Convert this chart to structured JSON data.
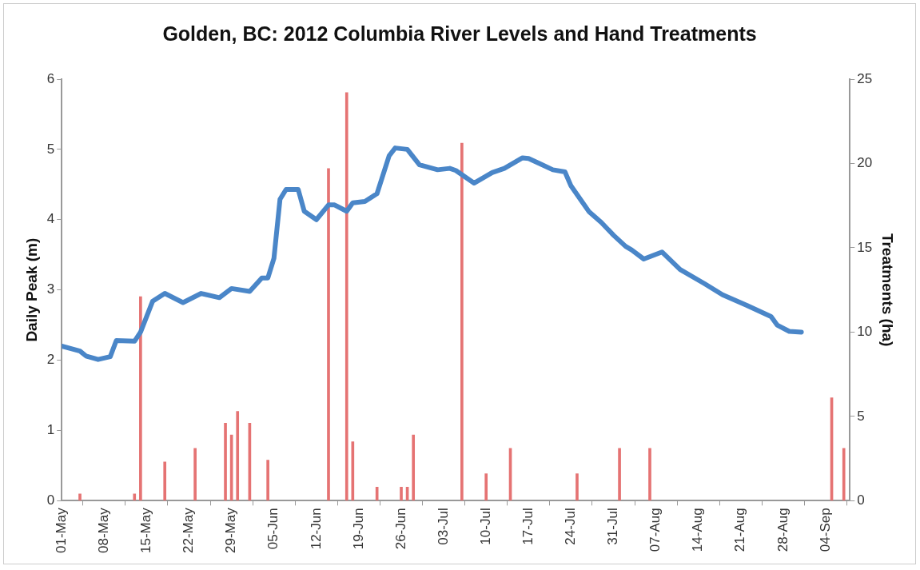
{
  "chart_data": {
    "type": "line",
    "title": "Golden, BC: 2012 Columbia River Levels and Hand Treatments",
    "ylabel": "Daily Peak (m)",
    "y2label": "Treatments (ha)",
    "xlim": [
      "2012-05-01",
      "2012-09-08"
    ],
    "xticks": [
      {
        "value": "2012-05-01",
        "label": "01-May"
      },
      {
        "value": "2012-05-08",
        "label": "08-May"
      },
      {
        "value": "2012-05-15",
        "label": "15-May"
      },
      {
        "value": "2012-05-22",
        "label": "22-May"
      },
      {
        "value": "2012-05-29",
        "label": "29-May"
      },
      {
        "value": "2012-06-05",
        "label": "05-Jun"
      },
      {
        "value": "2012-06-12",
        "label": "12-Jun"
      },
      {
        "value": "2012-06-19",
        "label": "19-Jun"
      },
      {
        "value": "2012-06-26",
        "label": "26-Jun"
      },
      {
        "value": "2012-07-03",
        "label": "03-Jul"
      },
      {
        "value": "2012-07-10",
        "label": "10-Jul"
      },
      {
        "value": "2012-07-17",
        "label": "17-Jul"
      },
      {
        "value": "2012-07-24",
        "label": "24-Jul"
      },
      {
        "value": "2012-07-31",
        "label": "31-Jul"
      },
      {
        "value": "2012-08-07",
        "label": "07-Aug"
      },
      {
        "value": "2012-08-14",
        "label": "14-Aug"
      },
      {
        "value": "2012-08-21",
        "label": "21-Aug"
      },
      {
        "value": "2012-08-28",
        "label": "28-Aug"
      },
      {
        "value": "2012-09-04",
        "label": "04-Sep"
      }
    ],
    "ylim": [
      0,
      6
    ],
    "yticks": [
      0,
      1,
      2,
      3,
      4,
      5,
      6
    ],
    "y2lim": [
      0,
      25
    ],
    "y2ticks": [
      0,
      5,
      10,
      15,
      20,
      25
    ],
    "grid": false,
    "legend": false,
    "marker": "none",
    "line_style": "solid",
    "series": [
      {
        "type": "bar",
        "axis": "y2",
        "color": "#e57373",
        "x": [
          "2012-05-04",
          "2012-05-13",
          "2012-05-14",
          "2012-05-18",
          "2012-05-23",
          "2012-05-28",
          "2012-05-29",
          "2012-05-30",
          "2012-06-01",
          "2012-06-04",
          "2012-06-14",
          "2012-06-17",
          "2012-06-18",
          "2012-06-22",
          "2012-06-26",
          "2012-06-27",
          "2012-06-28",
          "2012-07-06",
          "2012-07-10",
          "2012-07-14",
          "2012-07-25",
          "2012-08-01",
          "2012-08-06",
          "2012-09-05",
          "2012-09-07"
        ],
        "values": [
          0.4,
          0.4,
          12.1,
          2.3,
          3.1,
          4.6,
          3.9,
          5.3,
          4.6,
          2.4,
          19.7,
          24.2,
          3.5,
          0.8,
          0.8,
          0.8,
          3.9,
          21.2,
          1.6,
          3.1,
          1.6,
          3.1,
          3.1,
          6.1,
          3.1
        ]
      },
      {
        "color": "#4a86c8",
        "x": [
          "2012-05-01",
          "2012-05-04",
          "2012-05-05",
          "2012-05-07",
          "2012-05-09",
          "2012-05-10",
          "2012-05-13",
          "2012-05-14",
          "2012-05-16",
          "2012-05-18",
          "2012-05-21",
          "2012-05-24",
          "2012-05-27",
          "2012-05-29",
          "2012-06-01",
          "2012-06-03",
          "2012-06-04",
          "2012-06-05",
          "2012-06-06",
          "2012-06-07",
          "2012-06-09",
          "2012-06-10",
          "2012-06-12",
          "2012-06-14",
          "2012-06-15",
          "2012-06-17",
          "2012-06-18",
          "2012-06-20",
          "2012-06-22",
          "2012-06-24",
          "2012-06-25",
          "2012-06-27",
          "2012-06-29",
          "2012-07-02",
          "2012-07-04",
          "2012-07-05",
          "2012-07-08",
          "2012-07-11",
          "2012-07-13",
          "2012-07-16",
          "2012-07-17",
          "2012-07-19",
          "2012-07-21",
          "2012-07-23",
          "2012-07-24",
          "2012-07-27",
          "2012-07-29",
          "2012-07-31",
          "2012-08-02",
          "2012-08-03",
          "2012-08-05",
          "2012-08-08",
          "2012-08-11",
          "2012-08-15",
          "2012-08-18",
          "2012-08-22",
          "2012-08-26",
          "2012-08-27",
          "2012-08-29",
          "2012-08-31"
        ],
        "values": [
          2.2,
          2.13,
          2.06,
          2.01,
          2.05,
          2.28,
          2.27,
          2.4,
          2.84,
          2.95,
          2.82,
          2.95,
          2.89,
          3.02,
          2.98,
          3.17,
          3.17,
          3.45,
          4.29,
          4.43,
          4.43,
          4.12,
          4.0,
          4.21,
          4.21,
          4.12,
          4.24,
          4.26,
          4.37,
          4.91,
          5.02,
          5.0,
          4.78,
          4.71,
          4.73,
          4.7,
          4.52,
          4.67,
          4.73,
          4.88,
          4.87,
          4.79,
          4.71,
          4.68,
          4.48,
          4.11,
          3.96,
          3.78,
          3.62,
          3.57,
          3.44,
          3.54,
          3.29,
          3.09,
          2.93,
          2.78,
          2.62,
          2.5,
          2.41,
          2.4
        ]
      }
    ]
  }
}
